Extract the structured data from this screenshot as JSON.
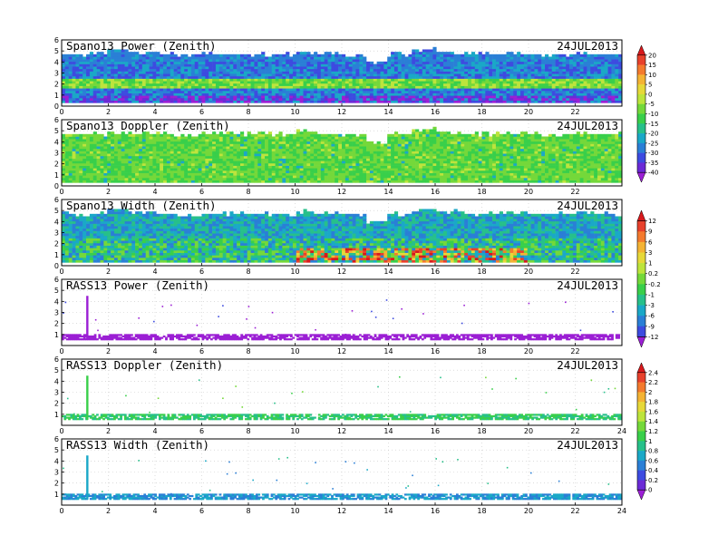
{
  "figure": {
    "date": "24JUL2013"
  },
  "chart_data": [
    {
      "type": "heatmap",
      "title": "Spano13 Power (Zenith)",
      "date_label": "24JUL2013",
      "x_ticks": [
        "0",
        "2",
        "4",
        "6",
        "8",
        "10",
        "12",
        "14",
        "16",
        "18",
        "20",
        "22"
      ],
      "xlim": [
        0,
        24
      ],
      "y_ticks": [
        "0",
        "1",
        "2",
        "3",
        "4",
        "5",
        "6"
      ],
      "ylim": [
        0,
        6
      ],
      "colorbar_group": 0,
      "top_height_profile": [
        4.6,
        4.6,
        5.0,
        4.7,
        4.6,
        4.5,
        4.6,
        4.6,
        4.6,
        4.6,
        4.8,
        4.6,
        4.5,
        3.9,
        4.6,
        5.0,
        4.8,
        4.6,
        4.6,
        4.7,
        4.6,
        4.6,
        4.7,
        4.6
      ],
      "gap": {
        "x": [
          13.0,
          13.7
        ],
        "above": 4.0
      },
      "features": [
        {
          "label": "enhanced layer",
          "y": [
            1.6,
            2.2
          ]
        },
        {
          "label": "weak layer",
          "y": [
            0.5,
            0.9
          ]
        }
      ]
    },
    {
      "type": "heatmap",
      "title": "Spano13 Doppler (Zenith)",
      "date_label": "24JUL2013",
      "x_ticks": [
        "0",
        "2",
        "4",
        "6",
        "8",
        "10",
        "12",
        "14",
        "16",
        "18",
        "20",
        "22"
      ],
      "xlim": [
        0,
        24
      ],
      "y_ticks": [
        "0",
        "1",
        "2",
        "3",
        "4",
        "5",
        "6"
      ],
      "ylim": [
        0,
        6
      ],
      "colorbar_group": 0,
      "top_height_profile": [
        4.6,
        4.6,
        4.8,
        4.7,
        4.6,
        4.5,
        4.6,
        4.6,
        4.6,
        4.6,
        4.8,
        4.6,
        4.5,
        3.9,
        4.6,
        5.0,
        4.8,
        4.6,
        4.6,
        4.7,
        4.6,
        4.6,
        4.7,
        4.6
      ],
      "gap": {
        "x": [
          13.0,
          13.7
        ],
        "above": 4.0
      }
    },
    {
      "type": "heatmap",
      "title": "Spano13 Width (Zenith)",
      "date_label": "24JUL2013",
      "x_ticks": [
        "0",
        "2",
        "4",
        "6",
        "8",
        "10",
        "12",
        "14",
        "16",
        "18",
        "20",
        "22"
      ],
      "xlim": [
        0,
        24
      ],
      "y_ticks": [
        "0",
        "1",
        "2",
        "3",
        "4",
        "5",
        "6"
      ],
      "ylim": [
        0,
        6
      ],
      "colorbar_group": 1,
      "top_height_profile": [
        4.6,
        4.6,
        5.0,
        4.7,
        4.6,
        4.5,
        4.6,
        4.6,
        4.6,
        4.6,
        4.8,
        4.6,
        4.5,
        3.9,
        4.6,
        5.0,
        4.8,
        4.6,
        4.6,
        4.7,
        4.6,
        4.6,
        4.7,
        4.6
      ],
      "gap": {
        "x": [
          13.0,
          13.7
        ],
        "above": 4.0
      },
      "features": [
        {
          "label": "high width region",
          "x": [
            10,
            20
          ],
          "y": [
            0.4,
            1.6
          ]
        }
      ]
    },
    {
      "type": "scatter",
      "title": "RASS13 Power (Zenith)",
      "date_label": "24JUL2013",
      "x_ticks": [
        "0",
        "2",
        "4",
        "6",
        "8",
        "10",
        "12",
        "14",
        "16",
        "18",
        "20",
        "22"
      ],
      "xlim": [
        0,
        24
      ],
      "y_ticks": [
        "1",
        "2",
        "3",
        "4",
        "5",
        "6"
      ],
      "ylim": [
        0,
        6
      ],
      "colorbar_group": 1,
      "band": {
        "y": [
          0.55,
          0.95
        ],
        "x": [
          0,
          24
        ]
      },
      "spike": {
        "x": 1.1,
        "y": [
          0.5,
          4.5
        ]
      }
    },
    {
      "type": "scatter",
      "title": "RASS13 Doppler (Zenith)",
      "date_label": "24JUL2013",
      "x_ticks": [
        "0",
        "2",
        "4",
        "6",
        "8",
        "10",
        "12",
        "14",
        "16",
        "18",
        "20",
        "22",
        "24"
      ],
      "xlim": [
        0,
        24
      ],
      "y_ticks": [
        "1",
        "2",
        "3",
        "4",
        "5",
        "6"
      ],
      "ylim": [
        0,
        6
      ],
      "colorbar_group": 2,
      "band": {
        "y": [
          0.55,
          0.95
        ],
        "x": [
          0,
          24
        ]
      },
      "spike": {
        "x": 1.1,
        "y": [
          0.5,
          4.5
        ]
      }
    },
    {
      "type": "scatter",
      "title": "RASS13 Width (Zenith)",
      "date_label": "24JUL2013",
      "x_ticks": [
        "0",
        "2",
        "4",
        "6",
        "8",
        "10",
        "12",
        "14",
        "16",
        "18",
        "20",
        "22",
        "24"
      ],
      "xlim": [
        0,
        24
      ],
      "y_ticks": [
        "1",
        "2",
        "3",
        "4",
        "5",
        "6"
      ],
      "ylim": [
        0,
        6
      ],
      "colorbar_group": 2,
      "band": {
        "y": [
          0.55,
          0.95
        ],
        "x": [
          0,
          24
        ]
      },
      "spike": {
        "x": 1.1,
        "y": [
          0.5,
          4.5
        ]
      }
    }
  ],
  "colorbars": [
    {
      "labels": [
        "20",
        "15",
        "10",
        "5",
        "0",
        "-5",
        "-10",
        "-15",
        "-20",
        "-25",
        "-30",
        "-35",
        "-40"
      ],
      "colors": [
        "#d7191c",
        "#e8412c",
        "#f47a2e",
        "#f4b334",
        "#e6d839",
        "#bde43c",
        "#74d83a",
        "#39cf4a",
        "#27c08a",
        "#1aa8c7",
        "#2a7fd6",
        "#3d4be0",
        "#6b2ad6",
        "#9b1fd4"
      ]
    },
    {
      "labels": [
        "12",
        "9",
        "6",
        "3",
        "1",
        "0.2",
        "-0.2",
        "-1",
        "-3",
        "-6",
        "-9",
        "-12"
      ],
      "colors": [
        "#d7191c",
        "#e8412c",
        "#f47a2e",
        "#f4b334",
        "#e6d839",
        "#bde43c",
        "#74d83a",
        "#39cf4a",
        "#27c08a",
        "#1aa8c7",
        "#2a7fd6",
        "#3d4be0",
        "#9b1fd4"
      ]
    },
    {
      "labels": [
        "2.4",
        "2.2",
        "2",
        "1.8",
        "1.6",
        "1.4",
        "1.2",
        "1",
        "0.8",
        "0.6",
        "0.4",
        "0.2",
        "0"
      ],
      "colors": [
        "#d7191c",
        "#e8412c",
        "#f47a2e",
        "#f4b334",
        "#e6d839",
        "#bde43c",
        "#74d83a",
        "#39cf4a",
        "#27c08a",
        "#1aa8c7",
        "#2a7fd6",
        "#3d4be0",
        "#6b2ad6",
        "#9b1fd4"
      ]
    }
  ]
}
